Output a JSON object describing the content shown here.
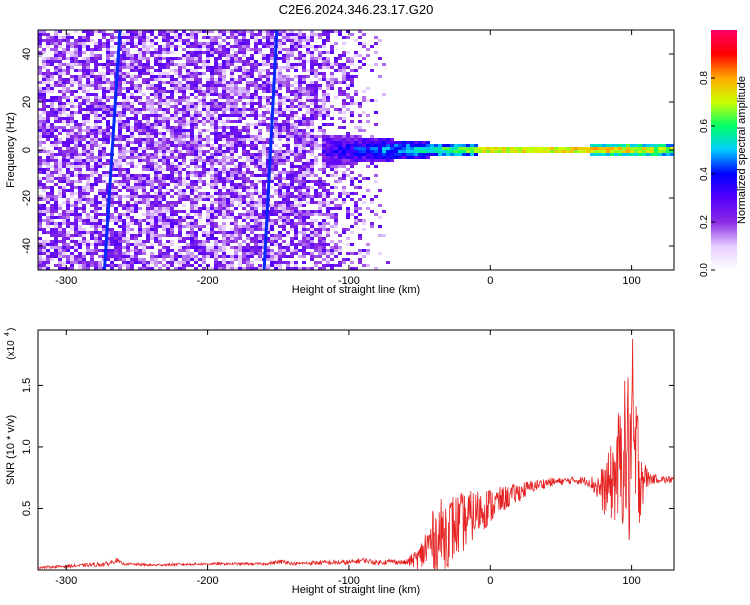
{
  "title": "C2E6.2024.346.23.17.G20",
  "chart_data": [
    {
      "type": "heatmap",
      "xlabel": "Height of straight line (km)",
      "ylabel": "Frequency (Hz)",
      "xlim": [
        -320,
        130
      ],
      "ylim": [
        -50,
        50
      ],
      "xticks": [
        -300,
        -200,
        -100,
        0,
        100
      ],
      "yticks": [
        -40,
        -20,
        0,
        20,
        40
      ],
      "colorbar": {
        "label": "Normalized spectral amplitude",
        "range": [
          0.0,
          1.0
        ],
        "ticks": [
          0.0,
          0.2,
          0.4,
          0.6,
          0.8
        ],
        "colors": [
          "#ffffff",
          "#e6ccff",
          "#8a2be2",
          "#5500ff",
          "#0000ff",
          "#00ccff",
          "#00ff66",
          "#ccff00",
          "#ffaa00",
          "#ff0000",
          "#ff0066"
        ]
      },
      "features": {
        "noise_region_x": [
          -320,
          -70
        ],
        "carrier_frequency_hz": 0,
        "carrier_band": [
          {
            "x": -120,
            "halfwidth_hz": 7,
            "amplitude": 0.3
          },
          {
            "x": -80,
            "halfwidth_hz": 5,
            "amplitude": 0.45
          },
          {
            "x": -40,
            "halfwidth_hz": 3,
            "amplitude": 0.6
          },
          {
            "x": 0,
            "halfwidth_hz": 1.5,
            "amplitude": 0.85
          },
          {
            "x": 60,
            "halfwidth_hz": 1.5,
            "amplitude": 0.9
          },
          {
            "x": 100,
            "halfwidth_hz": 3,
            "amplitude": 0.8
          },
          {
            "x": 130,
            "halfwidth_hz": 3,
            "amplitude": 0.7
          }
        ],
        "slanted_lines": [
          {
            "x_at_min_freq": -273,
            "x_at_max_freq": -262
          },
          {
            "x_at_min_freq": -160,
            "x_at_max_freq": -151
          }
        ]
      }
    },
    {
      "type": "line",
      "xlabel": "Height of straight line (km)",
      "ylabel": "SNR (10 * v/v)",
      "yscale_label": "(x10",
      "yscale_exponent": "4",
      "xlim": [
        -320,
        130
      ],
      "ylim": [
        0,
        1.95
      ],
      "xticks": [
        -300,
        -200,
        -100,
        0,
        100
      ],
      "yticks": [
        0.5,
        1.0,
        1.5
      ],
      "ytick_labels": [
        "0.5",
        "1.0",
        "1.5"
      ],
      "color": "#ee2222",
      "series": [
        {
          "x": [
            -320,
            -300,
            -270,
            -265,
            -260,
            -240,
            -200,
            -160,
            -145,
            -140,
            -120,
            -100,
            -90,
            -80,
            -70,
            -60,
            -50,
            -45,
            -40,
            -35,
            -30,
            -25,
            -20,
            -15,
            -10,
            -5,
            0,
            10,
            20,
            30,
            40,
            50,
            60,
            70,
            75,
            80,
            85,
            90,
            95,
            98,
            100,
            103,
            106,
            110,
            115,
            120,
            125,
            130
          ],
          "y": [
            0.02,
            0.03,
            0.05,
            0.08,
            0.05,
            0.04,
            0.05,
            0.05,
            0.07,
            0.05,
            0.06,
            0.06,
            0.08,
            0.06,
            0.07,
            0.06,
            0.1,
            0.18,
            0.25,
            0.28,
            0.32,
            0.35,
            0.38,
            0.42,
            0.46,
            0.5,
            0.52,
            0.58,
            0.63,
            0.68,
            0.71,
            0.72,
            0.73,
            0.72,
            0.68,
            0.65,
            0.7,
            0.8,
            0.95,
            0.9,
            1.0,
            0.85,
            0.8,
            0.75,
            0.74,
            0.74,
            0.73,
            0.74
          ],
          "noise": [
            0.01,
            0.01,
            0.02,
            0.02,
            0.01,
            0.01,
            0.01,
            0.01,
            0.02,
            0.01,
            0.02,
            0.02,
            0.02,
            0.02,
            0.02,
            0.02,
            0.1,
            0.2,
            0.25,
            0.3,
            0.3,
            0.28,
            0.25,
            0.22,
            0.2,
            0.18,
            0.15,
            0.1,
            0.08,
            0.05,
            0.04,
            0.03,
            0.03,
            0.04,
            0.1,
            0.2,
            0.3,
            0.45,
            0.6,
            0.8,
            1.0,
            0.7,
            0.4,
            0.1,
            0.04,
            0.03,
            0.03,
            0.03
          ]
        }
      ]
    }
  ]
}
